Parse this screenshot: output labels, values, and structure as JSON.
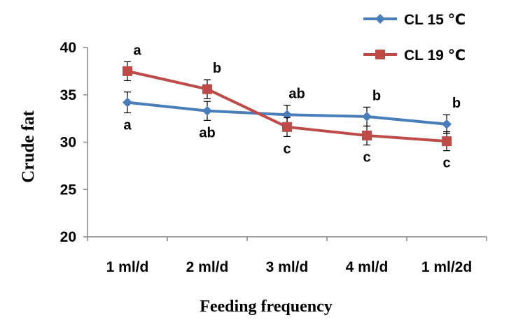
{
  "chart_data": {
    "type": "line",
    "title": "",
    "xlabel": "Feeding frequency",
    "ylabel": "Crude fat",
    "categories": [
      "1 ml/d",
      "2 ml/d",
      "3 ml/d",
      "4 ml/d",
      "1 ml/2d"
    ],
    "ylim": [
      20,
      40
    ],
    "yticks": [
      "20",
      "25",
      "30",
      "35",
      "40"
    ],
    "grid": false,
    "legend_position": "top-right",
    "series": [
      {
        "name": "CL 15 ℃",
        "color": "#4a7ebb",
        "marker": "diamond",
        "values": [
          34.2,
          33.3,
          32.9,
          32.7,
          31.9
        ],
        "errors": [
          1.1,
          1.0,
          1.0,
          1.0,
          1.0
        ],
        "letters": [
          "a",
          "ab",
          "ab",
          "b",
          "b"
        ],
        "letter_placement": [
          "below",
          "below",
          "above",
          "above",
          "above"
        ]
      },
      {
        "name": "CL 19 ℃",
        "color": "#be4b48",
        "marker": "square",
        "values": [
          37.5,
          35.6,
          31.6,
          30.7,
          30.1
        ],
        "errors": [
          1.0,
          1.0,
          1.0,
          1.0,
          1.0
        ],
        "letters": [
          "a",
          "b",
          "c",
          "c",
          "c"
        ],
        "letter_placement": [
          "above",
          "above",
          "below",
          "below",
          "below"
        ]
      }
    ]
  }
}
